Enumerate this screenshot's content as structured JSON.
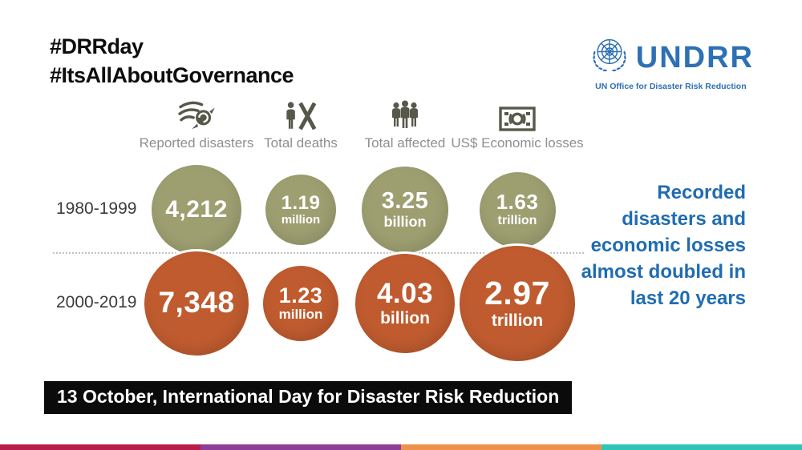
{
  "hashtags": {
    "line1": "#DRRday",
    "line2": "#ItsAllAboutGovernance"
  },
  "logo": {
    "org": "UNDRR",
    "tagline": "UN Office for Disaster Risk Reduction",
    "color": "#2d70b5"
  },
  "icons": {
    "reported_disasters": "storm-swirl-icon",
    "total_deaths": "person-x-icon",
    "total_affected": "people-group-icon",
    "economic_losses": "banknote-icon",
    "logo": "un-emblem-icon"
  },
  "chart_data": {
    "type": "bubble",
    "title": "",
    "categories": [
      "Reported disasters",
      "Total deaths",
      "Total affected",
      "US$ Economic losses"
    ],
    "rows": [
      {
        "period": "1980-1999",
        "color": "#9d9f71",
        "bubbles": [
          {
            "value": "4,212",
            "unit": "",
            "numeric": 4212,
            "size": 112
          },
          {
            "value": "1.19",
            "unit": "million",
            "numeric": 1190000,
            "size": 88
          },
          {
            "value": "3.25",
            "unit": "billion",
            "numeric": 3250000000,
            "size": 108
          },
          {
            "value": "1.63",
            "unit": "trillion",
            "numeric": 1630000000000,
            "size": 95
          }
        ]
      },
      {
        "period": "2000-2019",
        "color": "#bf5b2f",
        "bubbles": [
          {
            "value": "7,348",
            "unit": "",
            "numeric": 7348,
            "size": 136
          },
          {
            "value": "1.23",
            "unit": "million",
            "numeric": 1230000,
            "size": 100
          },
          {
            "value": "4.03",
            "unit": "billion",
            "numeric": 4030000000,
            "size": 130
          },
          {
            "value": "2.97",
            "unit": "trillion",
            "numeric": 2970000000000,
            "size": 150
          }
        ]
      }
    ]
  },
  "callout": {
    "text": "Recorded disasters and economic losses almost doubled in last 20 years",
    "color": "#1f6cb2"
  },
  "banner": {
    "text": "13 October, International Day for Disaster Risk Reduction"
  },
  "footer_stripe": {
    "colors": [
      "#b81e4b",
      "#8e3e98",
      "#ef9249",
      "#2fc4b6"
    ]
  },
  "colors": {
    "icon": "#57584a",
    "header_label": "#8f8f8f",
    "banner_bg": "#0b0b0b"
  }
}
